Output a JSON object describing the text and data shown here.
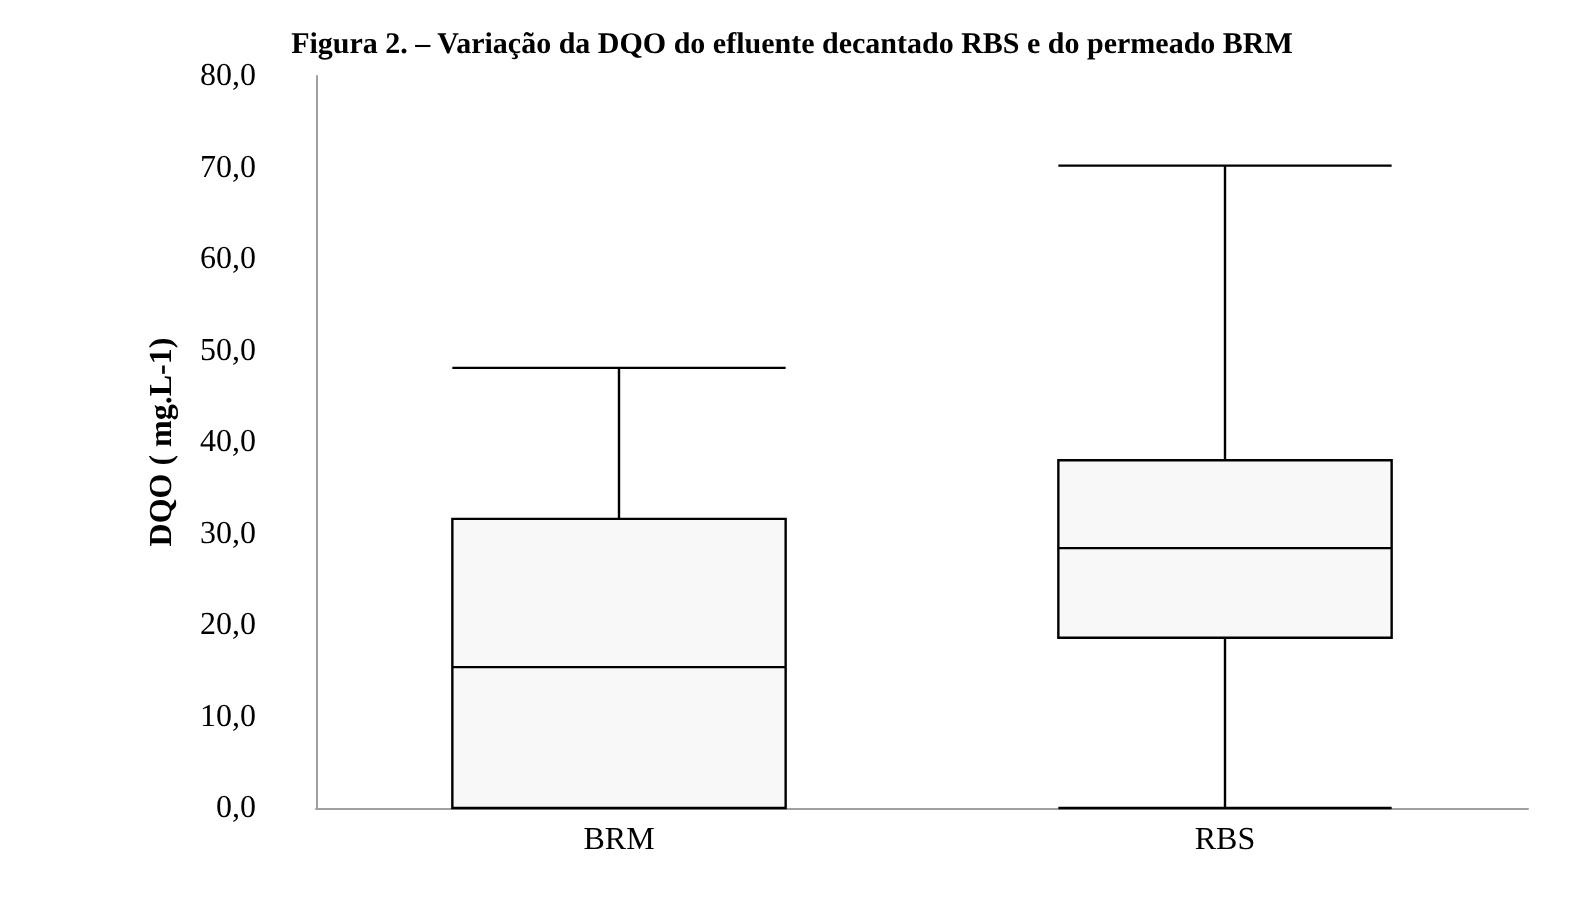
{
  "chart_data": {
    "type": "box",
    "title": "Figura 2. – Variação da DQO do efluente decantado RBS e do permeado BRM",
    "ylabel": "DQO ( mg.L-1)",
    "categories": [
      "BRM",
      "RBS"
    ],
    "boxes": [
      {
        "low": 0,
        "q1": 0,
        "median": 15.4,
        "q3": 31.6,
        "high": 48.1
      },
      {
        "low": 0,
        "q1": 18.6,
        "median": 28.4,
        "q3": 38.0,
        "high": 70.2
      }
    ],
    "ylim": [
      0,
      80
    ],
    "yticks": [
      {
        "value": 0,
        "label": "0,0"
      },
      {
        "value": 10,
        "label": "10,0"
      },
      {
        "value": 20,
        "label": "20,0"
      },
      {
        "value": 30,
        "label": "30,0"
      },
      {
        "value": 40,
        "label": "40,0"
      },
      {
        "value": 50,
        "label": "50,0"
      },
      {
        "value": 60,
        "label": "60,0"
      },
      {
        "value": 70,
        "label": "70,0"
      },
      {
        "value": 80,
        "label": "80,0"
      }
    ],
    "color": "#000000"
  }
}
